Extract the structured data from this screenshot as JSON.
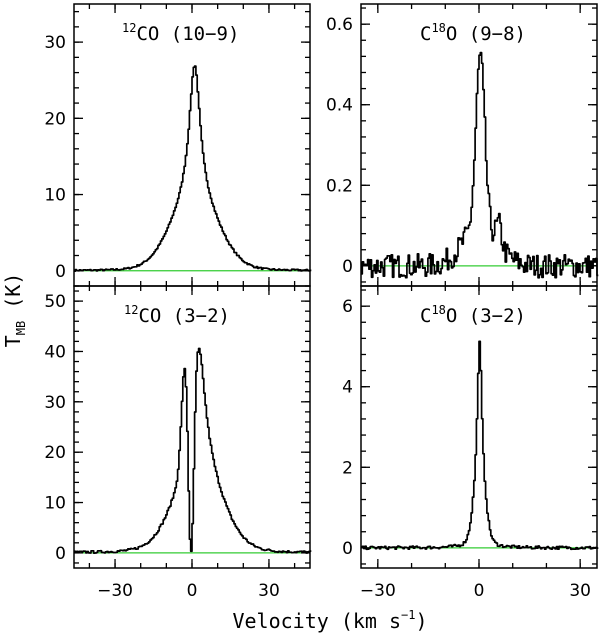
{
  "colors": {
    "baseline": "#33cc33",
    "line": "#000000"
  },
  "axis_labels": {
    "y_main": "T",
    "y_sub": "MB",
    "y_unit": " (K)",
    "x_main": "Velocity (km s",
    "x_sup": "−1",
    "x_close": ")"
  },
  "chart_data": [
    {
      "type": "line",
      "title_sup": "12",
      "title_main": "CO (10−9)",
      "xlim": [
        -46,
        46
      ],
      "ylim": [
        -2,
        35
      ],
      "yticks": [
        0,
        10,
        20,
        30
      ],
      "xticks": [
        -30,
        0,
        30
      ],
      "baseline": 0,
      "profile": {
        "peak": 27,
        "center": 0.8,
        "components": [
          {
            "amp": 18.0,
            "width": 2.6,
            "shape": "lorentz"
          },
          {
            "amp": 9.0,
            "width": 9.0,
            "shape": "gauss"
          }
        ],
        "noise": 0.12
      }
    },
    {
      "type": "line",
      "title_sup": "18",
      "title_main": "C",
      "title_rest": "O (9−8)",
      "xlim": [
        -35,
        35
      ],
      "ylim": [
        -0.05,
        0.65
      ],
      "yticks": [
        0,
        0.2,
        0.4,
        0.6
      ],
      "xticks": [
        -30,
        0,
        30
      ],
      "baseline": 0,
      "profile": {
        "peak": 0.52,
        "center": 0.2,
        "components": [
          {
            "amp": 0.42,
            "width": 1.3,
            "shape": "gauss"
          },
          {
            "amp": 0.1,
            "width": 5.0,
            "shape": "gauss"
          },
          {
            "amp": 0.05,
            "width": 0.8,
            "shape": "gauss",
            "offset": 5.5
          }
        ],
        "noise": 0.03
      }
    },
    {
      "type": "line",
      "title_sup": "12",
      "title_main": "CO (3−2)",
      "xlim": [
        -46,
        46
      ],
      "ylim": [
        -3,
        53
      ],
      "yticks": [
        0,
        10,
        20,
        30,
        40,
        50
      ],
      "xticks": [
        -30,
        0,
        30
      ],
      "baseline": 0,
      "profile": {
        "peak": 43,
        "center": 2.2,
        "components": [
          {
            "amp": 26.0,
            "width": 3.4,
            "shape": "lorentz"
          },
          {
            "amp": 15.0,
            "width": 9.0,
            "shape": "gauss"
          },
          {
            "amp": 18.0,
            "width": 1.3,
            "shape": "gauss",
            "offset": -5.2
          }
        ],
        "absorption": {
          "center": -0.6,
          "depth": 1.0,
          "width": 1.0
        },
        "noise": 0.25
      }
    },
    {
      "type": "line",
      "title_sup": "18",
      "title_main": "C",
      "title_rest": "O (3−2)",
      "xlim": [
        -35,
        35
      ],
      "ylim": [
        -0.5,
        6.5
      ],
      "yticks": [
        0,
        2,
        4,
        6
      ],
      "xticks": [
        -30,
        0,
        30
      ],
      "baseline": 0,
      "profile": {
        "peak": 5.1,
        "center": 0,
        "components": [
          {
            "amp": 3.6,
            "width": 0.8,
            "shape": "lorentz"
          },
          {
            "amp": 1.5,
            "width": 1.6,
            "shape": "gauss"
          }
        ],
        "noise": 0.04
      }
    }
  ]
}
